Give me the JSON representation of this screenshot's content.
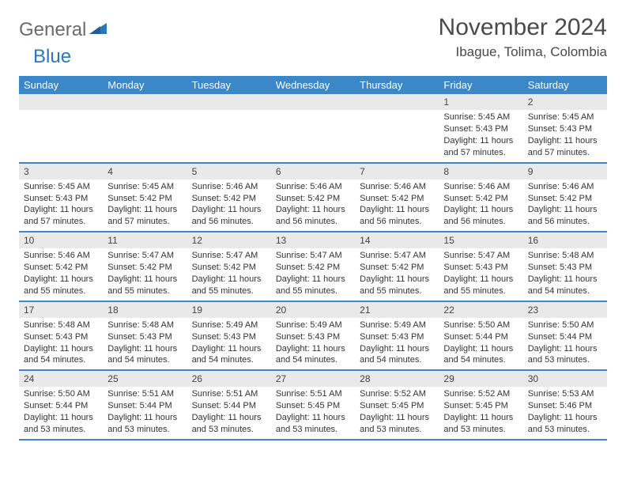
{
  "logo": {
    "part1": "General",
    "part2": "Blue"
  },
  "title": "November 2024",
  "location": "Ibague, Tolima, Colombia",
  "colors": {
    "header_bg": "#3b87c8",
    "header_text": "#ffffff",
    "daynum_bg": "#e9e9e9",
    "border": "#3b87c8",
    "logo_gray": "#6a6a6a",
    "logo_blue": "#2a77bb",
    "text": "#333333"
  },
  "daysOfWeek": [
    "Sunday",
    "Monday",
    "Tuesday",
    "Wednesday",
    "Thursday",
    "Friday",
    "Saturday"
  ],
  "weeks": [
    [
      {
        "empty": true
      },
      {
        "empty": true
      },
      {
        "empty": true
      },
      {
        "empty": true
      },
      {
        "empty": true
      },
      {
        "num": "1",
        "sunrise": "Sunrise: 5:45 AM",
        "sunset": "Sunset: 5:43 PM",
        "daylight": "Daylight: 11 hours and 57 minutes."
      },
      {
        "num": "2",
        "sunrise": "Sunrise: 5:45 AM",
        "sunset": "Sunset: 5:43 PM",
        "daylight": "Daylight: 11 hours and 57 minutes."
      }
    ],
    [
      {
        "num": "3",
        "sunrise": "Sunrise: 5:45 AM",
        "sunset": "Sunset: 5:43 PM",
        "daylight": "Daylight: 11 hours and 57 minutes."
      },
      {
        "num": "4",
        "sunrise": "Sunrise: 5:45 AM",
        "sunset": "Sunset: 5:42 PM",
        "daylight": "Daylight: 11 hours and 57 minutes."
      },
      {
        "num": "5",
        "sunrise": "Sunrise: 5:46 AM",
        "sunset": "Sunset: 5:42 PM",
        "daylight": "Daylight: 11 hours and 56 minutes."
      },
      {
        "num": "6",
        "sunrise": "Sunrise: 5:46 AM",
        "sunset": "Sunset: 5:42 PM",
        "daylight": "Daylight: 11 hours and 56 minutes."
      },
      {
        "num": "7",
        "sunrise": "Sunrise: 5:46 AM",
        "sunset": "Sunset: 5:42 PM",
        "daylight": "Daylight: 11 hours and 56 minutes."
      },
      {
        "num": "8",
        "sunrise": "Sunrise: 5:46 AM",
        "sunset": "Sunset: 5:42 PM",
        "daylight": "Daylight: 11 hours and 56 minutes."
      },
      {
        "num": "9",
        "sunrise": "Sunrise: 5:46 AM",
        "sunset": "Sunset: 5:42 PM",
        "daylight": "Daylight: 11 hours and 56 minutes."
      }
    ],
    [
      {
        "num": "10",
        "sunrise": "Sunrise: 5:46 AM",
        "sunset": "Sunset: 5:42 PM",
        "daylight": "Daylight: 11 hours and 55 minutes."
      },
      {
        "num": "11",
        "sunrise": "Sunrise: 5:47 AM",
        "sunset": "Sunset: 5:42 PM",
        "daylight": "Daylight: 11 hours and 55 minutes."
      },
      {
        "num": "12",
        "sunrise": "Sunrise: 5:47 AM",
        "sunset": "Sunset: 5:42 PM",
        "daylight": "Daylight: 11 hours and 55 minutes."
      },
      {
        "num": "13",
        "sunrise": "Sunrise: 5:47 AM",
        "sunset": "Sunset: 5:42 PM",
        "daylight": "Daylight: 11 hours and 55 minutes."
      },
      {
        "num": "14",
        "sunrise": "Sunrise: 5:47 AM",
        "sunset": "Sunset: 5:42 PM",
        "daylight": "Daylight: 11 hours and 55 minutes."
      },
      {
        "num": "15",
        "sunrise": "Sunrise: 5:47 AM",
        "sunset": "Sunset: 5:43 PM",
        "daylight": "Daylight: 11 hours and 55 minutes."
      },
      {
        "num": "16",
        "sunrise": "Sunrise: 5:48 AM",
        "sunset": "Sunset: 5:43 PM",
        "daylight": "Daylight: 11 hours and 54 minutes."
      }
    ],
    [
      {
        "num": "17",
        "sunrise": "Sunrise: 5:48 AM",
        "sunset": "Sunset: 5:43 PM",
        "daylight": "Daylight: 11 hours and 54 minutes."
      },
      {
        "num": "18",
        "sunrise": "Sunrise: 5:48 AM",
        "sunset": "Sunset: 5:43 PM",
        "daylight": "Daylight: 11 hours and 54 minutes."
      },
      {
        "num": "19",
        "sunrise": "Sunrise: 5:49 AM",
        "sunset": "Sunset: 5:43 PM",
        "daylight": "Daylight: 11 hours and 54 minutes."
      },
      {
        "num": "20",
        "sunrise": "Sunrise: 5:49 AM",
        "sunset": "Sunset: 5:43 PM",
        "daylight": "Daylight: 11 hours and 54 minutes."
      },
      {
        "num": "21",
        "sunrise": "Sunrise: 5:49 AM",
        "sunset": "Sunset: 5:43 PM",
        "daylight": "Daylight: 11 hours and 54 minutes."
      },
      {
        "num": "22",
        "sunrise": "Sunrise: 5:50 AM",
        "sunset": "Sunset: 5:44 PM",
        "daylight": "Daylight: 11 hours and 54 minutes."
      },
      {
        "num": "23",
        "sunrise": "Sunrise: 5:50 AM",
        "sunset": "Sunset: 5:44 PM",
        "daylight": "Daylight: 11 hours and 53 minutes."
      }
    ],
    [
      {
        "num": "24",
        "sunrise": "Sunrise: 5:50 AM",
        "sunset": "Sunset: 5:44 PM",
        "daylight": "Daylight: 11 hours and 53 minutes."
      },
      {
        "num": "25",
        "sunrise": "Sunrise: 5:51 AM",
        "sunset": "Sunset: 5:44 PM",
        "daylight": "Daylight: 11 hours and 53 minutes."
      },
      {
        "num": "26",
        "sunrise": "Sunrise: 5:51 AM",
        "sunset": "Sunset: 5:44 PM",
        "daylight": "Daylight: 11 hours and 53 minutes."
      },
      {
        "num": "27",
        "sunrise": "Sunrise: 5:51 AM",
        "sunset": "Sunset: 5:45 PM",
        "daylight": "Daylight: 11 hours and 53 minutes."
      },
      {
        "num": "28",
        "sunrise": "Sunrise: 5:52 AM",
        "sunset": "Sunset: 5:45 PM",
        "daylight": "Daylight: 11 hours and 53 minutes."
      },
      {
        "num": "29",
        "sunrise": "Sunrise: 5:52 AM",
        "sunset": "Sunset: 5:45 PM",
        "daylight": "Daylight: 11 hours and 53 minutes."
      },
      {
        "num": "30",
        "sunrise": "Sunrise: 5:53 AM",
        "sunset": "Sunset: 5:46 PM",
        "daylight": "Daylight: 11 hours and 53 minutes."
      }
    ]
  ]
}
